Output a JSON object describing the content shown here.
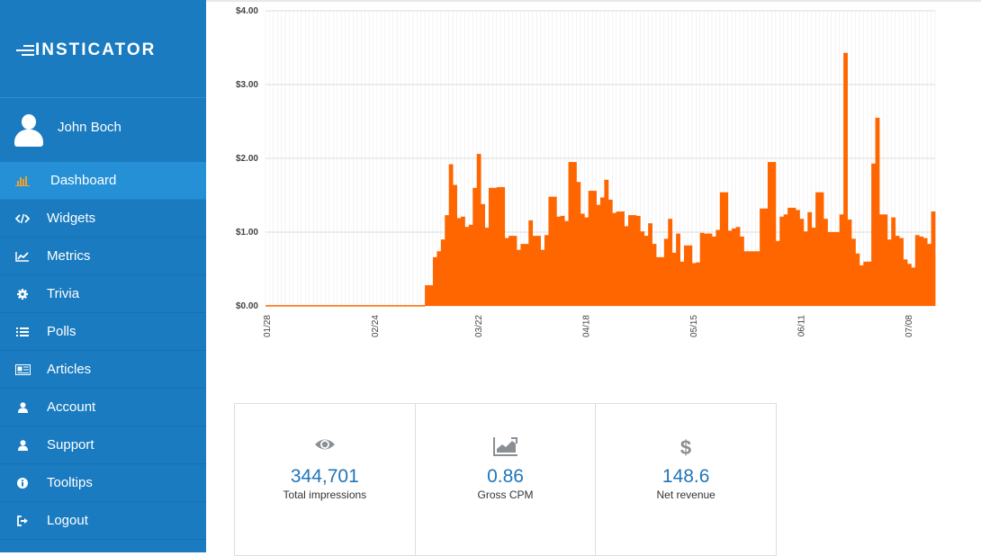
{
  "brand": {
    "name": "INSTICATOR"
  },
  "user": {
    "name": "John Boch"
  },
  "nav": [
    {
      "label": "Dashboard",
      "icon": "bar-chart-icon",
      "active": true
    },
    {
      "label": "Widgets",
      "icon": "code-icon"
    },
    {
      "label": "Metrics",
      "icon": "line-chart-icon"
    },
    {
      "label": "Trivia",
      "icon": "gear-icon"
    },
    {
      "label": "Polls",
      "icon": "list-icon"
    },
    {
      "label": "Articles",
      "icon": "newspaper-icon"
    },
    {
      "label": "Account",
      "icon": "user-icon"
    },
    {
      "label": "Support",
      "icon": "user-icon"
    },
    {
      "label": "Tooltips",
      "icon": "info-icon"
    },
    {
      "label": "Logout",
      "icon": "sign-out-icon"
    }
  ],
  "colors": {
    "sidebar": "#1a7bc0",
    "active": "#2590d6",
    "bar": "#ff6600",
    "stat_value": "#2176b8"
  },
  "chart_data": {
    "type": "bar",
    "y_ticks": [
      "$0.00",
      "$1.00",
      "$2.00",
      "$3.00",
      "$4.00"
    ],
    "ylim": [
      0,
      4
    ],
    "x_ticks": [
      {
        "label": "01/28",
        "index": 0
      },
      {
        "label": "02/24",
        "index": 27
      },
      {
        "label": "03/22",
        "index": 53
      },
      {
        "label": "04/18",
        "index": 80
      },
      {
        "label": "05/15",
        "index": 107
      },
      {
        "label": "06/11",
        "index": 134
      },
      {
        "label": "07/08",
        "index": 161
      }
    ],
    "values": [
      0.01,
      0.01,
      0.01,
      0.01,
      0.01,
      0.01,
      0.01,
      0.01,
      0.01,
      0.01,
      0.01,
      0.01,
      0.01,
      0.01,
      0.01,
      0.01,
      0.01,
      0.01,
      0.01,
      0.01,
      0.01,
      0.01,
      0.01,
      0.01,
      0.01,
      0.01,
      0.01,
      0.01,
      0.01,
      0.01,
      0.01,
      0.01,
      0.01,
      0.01,
      0.01,
      0.01,
      0.01,
      0.01,
      0.01,
      0.01,
      0.28,
      0.28,
      0.66,
      0.74,
      0.9,
      1.23,
      1.92,
      1.64,
      1.19,
      1.21,
      1.07,
      1.1,
      1.6,
      2.06,
      1.38,
      1.06,
      1.6,
      1.6,
      1.61,
      1.61,
      0.92,
      0.95,
      0.95,
      0.76,
      0.84,
      0.84,
      1.16,
      0.95,
      0.95,
      0.76,
      0.96,
      1.48,
      1.48,
      1.21,
      1.22,
      1.15,
      1.95,
      1.95,
      1.68,
      1.25,
      1.2,
      1.56,
      1.56,
      1.37,
      1.47,
      1.71,
      1.44,
      1.26,
      1.28,
      1.28,
      1.08,
      1.23,
      1.23,
      1.22,
      1.01,
      0.95,
      1.12,
      0.84,
      0.66,
      0.66,
      0.91,
      1.18,
      0.72,
      0.98,
      0.6,
      0.82,
      0.82,
      0.58,
      0.59,
      0.99,
      0.98,
      0.98,
      0.94,
      1.03,
      1.54,
      1.54,
      1.02,
      1.05,
      1.07,
      0.94,
      0.74,
      0.74,
      0.74,
      0.74,
      1.32,
      1.32,
      1.95,
      1.95,
      0.88,
      1.21,
      1.24,
      1.33,
      1.33,
      1.3,
      1.18,
      1.01,
      1.27,
      1.06,
      1.54,
      1.54,
      1.18,
      1.0,
      1.0,
      1.0,
      1.24,
      3.43,
      1.17,
      0.91,
      0.71,
      0.55,
      0.6,
      0.6,
      1.93,
      2.55,
      1.24,
      1.24,
      0.9,
      1.2,
      0.95,
      0.92,
      0.63,
      0.57,
      0.52,
      0.96,
      0.94,
      0.92,
      0.84,
      1.28
    ]
  },
  "stats": [
    {
      "icon": "eye-icon",
      "value": "344,701",
      "label": "Total impressions"
    },
    {
      "icon": "area-chart-icon",
      "value": "0.86",
      "label": "Gross CPM"
    },
    {
      "icon": "dollar-icon",
      "value": "148.6",
      "label": "Net revenue"
    }
  ]
}
